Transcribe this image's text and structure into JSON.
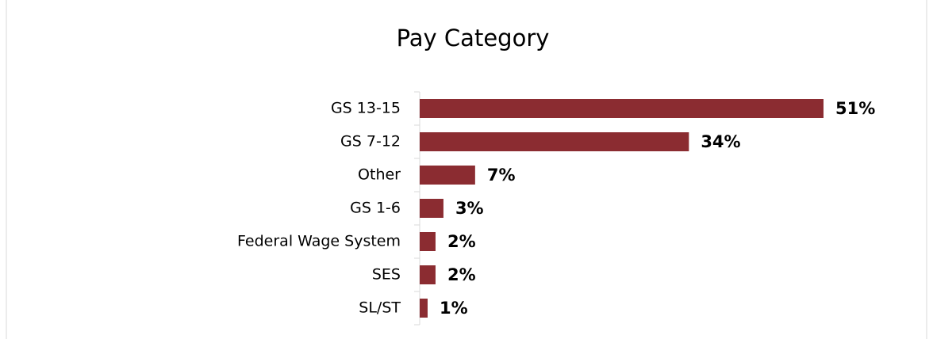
{
  "chart_data": {
    "type": "bar",
    "orientation": "horizontal",
    "title": "Pay Category",
    "categories": [
      "GS 13-15",
      "GS 7-12",
      "Other",
      "GS 1-6",
      "Federal Wage System",
      "SES",
      "SL/ST"
    ],
    "values": [
      51,
      34,
      7,
      3,
      2,
      2,
      1
    ],
    "value_labels": [
      "51%",
      "34%",
      "7%",
      "3%",
      "2%",
      "2%",
      "1%"
    ],
    "color": "#8b2c31"
  }
}
